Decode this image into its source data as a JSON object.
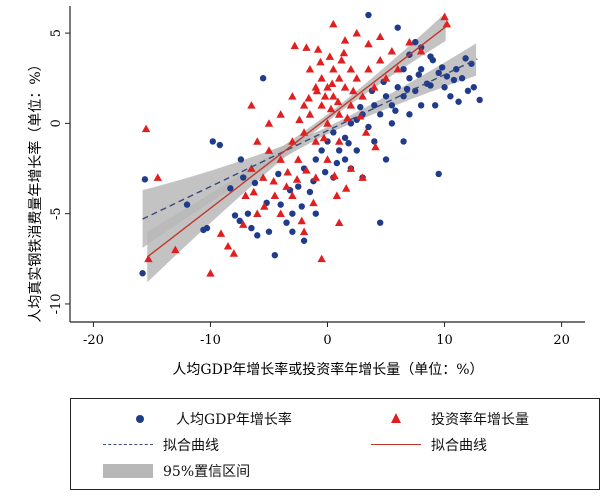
{
  "chart_data": {
    "type": "scatter",
    "xlabel": "人均GDP年增长率或投资率年增长量（单位：%）",
    "ylabel": "人均真实钢铁消费量年增长率（单位：%）",
    "xlim": [
      -22,
      22
    ],
    "ylim": [
      -11,
      6.5
    ],
    "xticks": [
      -20,
      -10,
      0,
      10,
      20
    ],
    "yticks": [
      -10,
      -5,
      0,
      5
    ],
    "grid": false,
    "legend_position": "bottom",
    "series": [
      {
        "name": "人均GDP年增长率",
        "marker": "circle",
        "color": "#1f3b8a",
        "fit_slope": 0.31,
        "fit_intercept": -0.4,
        "points": [
          [
            -15.8,
            -8.3
          ],
          [
            -15.6,
            -3.1
          ],
          [
            -12,
            -4.5
          ],
          [
            -10.3,
            -5.8
          ],
          [
            -9.8,
            -1
          ],
          [
            -7.4,
            -2
          ],
          [
            -7.2,
            -3
          ],
          [
            -7.5,
            -5.4
          ],
          [
            -6.8,
            -5
          ],
          [
            -6.5,
            -5.8
          ],
          [
            -6,
            -6.2
          ],
          [
            -5.5,
            2.5
          ],
          [
            -5,
            -6
          ],
          [
            -4.5,
            -7.3
          ],
          [
            -4,
            -4.5
          ],
          [
            -3.5,
            -5.5
          ],
          [
            -3,
            -5
          ],
          [
            -2.5,
            -3.5
          ],
          [
            -2,
            -2.5
          ],
          [
            -1.5,
            -3.8
          ],
          [
            -1,
            -2
          ],
          [
            -0.5,
            -1.5
          ],
          [
            0,
            -1
          ],
          [
            0.5,
            -0.5
          ],
          [
            1,
            -1.5
          ],
          [
            1.5,
            -0.8
          ],
          [
            2,
            0
          ],
          [
            2.5,
            0.2
          ],
          [
            3,
            0.5
          ],
          [
            3.5,
            -0.2
          ],
          [
            4,
            1
          ],
          [
            4.5,
            0.5
          ],
          [
            5,
            1.5
          ],
          [
            5.5,
            1
          ],
          [
            6,
            2
          ],
          [
            6.5,
            1.5
          ],
          [
            7,
            2.5
          ],
          [
            7.5,
            1.8
          ],
          [
            8,
            3
          ],
          [
            8.5,
            2.2
          ],
          [
            9,
            3.5
          ],
          [
            9.5,
            2.8
          ],
          [
            10,
            2
          ],
          [
            10.5,
            1.5
          ],
          [
            11,
            3
          ],
          [
            11.5,
            2.5
          ],
          [
            12,
            1.8
          ],
          [
            12.5,
            2
          ],
          [
            13,
            1.3
          ],
          [
            3.5,
            6
          ],
          [
            6,
            5.3
          ],
          [
            7.5,
            4.5
          ],
          [
            4.5,
            -5.5
          ],
          [
            9.5,
            -2.8
          ],
          [
            2,
            -2.5
          ],
          [
            3,
            -3
          ],
          [
            5,
            -2
          ],
          [
            6.5,
            -1
          ],
          [
            7,
            0.5
          ],
          [
            8,
            1
          ],
          [
            -2,
            -6.5
          ],
          [
            -3,
            -6
          ],
          [
            -1,
            -5
          ],
          [
            0.5,
            -3
          ],
          [
            1.5,
            -2
          ],
          [
            2.5,
            -1.5
          ],
          [
            4,
            -1
          ],
          [
            5.5,
            0
          ],
          [
            6.5,
            3
          ],
          [
            7,
            3.8
          ],
          [
            8,
            4.2
          ],
          [
            8.8,
            3.7
          ],
          [
            9.2,
            1
          ],
          [
            10.2,
            2.6
          ],
          [
            11.2,
            1.2
          ],
          [
            12.3,
            3.3
          ],
          [
            -6.2,
            -3.3
          ],
          [
            -5.2,
            -4.4
          ],
          [
            -4.2,
            -2.8
          ],
          [
            -3.2,
            -3.7
          ],
          [
            -2.2,
            -4.6
          ],
          [
            -1.2,
            -3.2
          ],
          [
            -0.2,
            -2.7
          ],
          [
            0.8,
            -2.2
          ],
          [
            1.8,
            -1.1
          ],
          [
            2.8,
            0.9
          ],
          [
            3.8,
            1.8
          ],
          [
            4.8,
            2.3
          ],
          [
            5.8,
            0.7
          ],
          [
            6.8,
            1.9
          ],
          [
            7.8,
            2.7
          ],
          [
            8.8,
            2.1
          ],
          [
            9.8,
            3.1
          ],
          [
            10.8,
            2.4
          ],
          [
            11.8,
            3.6
          ],
          [
            -8.3,
            -3.6
          ],
          [
            -9.2,
            -1.2
          ],
          [
            -10.6,
            -5.9
          ],
          [
            -7.9,
            -5.1
          ]
        ]
      },
      {
        "name": "投资率年增长量",
        "marker": "triangle",
        "color": "#e02020",
        "fit_slope": 0.5,
        "fit_intercept": 0.3,
        "points": [
          [
            -15.5,
            -0.3
          ],
          [
            -15.3,
            -7.5
          ],
          [
            -14.5,
            -3
          ],
          [
            -13,
            -7
          ],
          [
            -10,
            -8.3
          ],
          [
            -8.5,
            -6.8
          ],
          [
            -7,
            -4
          ],
          [
            -6.5,
            -2.5
          ],
          [
            -6,
            -5
          ],
          [
            -5.5,
            -3
          ],
          [
            -5,
            -1.5
          ],
          [
            -4.5,
            -4
          ],
          [
            -4,
            -2
          ],
          [
            -3.5,
            -3.5
          ],
          [
            -3,
            -1
          ],
          [
            -2.5,
            -2
          ],
          [
            -2,
            -0.5
          ],
          [
            -1.5,
            0.5
          ],
          [
            -1,
            -1
          ],
          [
            -0.5,
            1
          ],
          [
            0,
            0
          ],
          [
            0.5,
            1.5
          ],
          [
            1,
            0.5
          ],
          [
            1.5,
            2
          ],
          [
            2,
            1
          ],
          [
            2.5,
            2.5
          ],
          [
            3,
            1.5
          ],
          [
            3.5,
            3
          ],
          [
            4,
            2
          ],
          [
            4.5,
            3.5
          ],
          [
            5,
            2.5
          ],
          [
            5.5,
            4
          ],
          [
            6,
            3
          ],
          [
            7,
            4.5
          ],
          [
            8,
            4
          ],
          [
            10,
            5.9
          ],
          [
            10.2,
            5.5
          ],
          [
            -2.8,
            4.3
          ],
          [
            -1.8,
            4.2
          ],
          [
            -0.8,
            4.1
          ],
          [
            0.5,
            5.5
          ],
          [
            1.5,
            4.6
          ],
          [
            2.5,
            5
          ],
          [
            3.5,
            4.4
          ],
          [
            4.5,
            4.8
          ],
          [
            -1.5,
            3
          ],
          [
            -0.5,
            2.5
          ],
          [
            0.5,
            3
          ],
          [
            1.2,
            3.5
          ],
          [
            2,
            3
          ],
          [
            -1,
            2
          ],
          [
            0,
            2
          ],
          [
            1,
            2.5
          ],
          [
            -2,
            1
          ],
          [
            -3,
            1.5
          ],
          [
            -4,
            0.5
          ],
          [
            -5,
            0
          ],
          [
            -6,
            -1
          ],
          [
            -6.5,
            1
          ],
          [
            -4,
            -5
          ],
          [
            -3,
            -4
          ],
          [
            -2,
            -6
          ],
          [
            -1,
            -3
          ],
          [
            0,
            -2
          ],
          [
            1,
            -1
          ],
          [
            2,
            -2.5
          ],
          [
            3,
            -3
          ],
          [
            1,
            -5.5
          ],
          [
            -0.5,
            -7.5
          ],
          [
            -2.2,
            -5.4
          ],
          [
            0.8,
            -4
          ],
          [
            -1.8,
            -2.6
          ],
          [
            -0.3,
            -0.8
          ],
          [
            0.3,
            0.8
          ],
          [
            0.9,
            1.2
          ],
          [
            1.7,
            0.3
          ],
          [
            -0.9,
            1.8
          ],
          [
            -1.6,
            1.4
          ],
          [
            -2.4,
            0.2
          ],
          [
            2.2,
            1.8
          ],
          [
            2.8,
            0.4
          ],
          [
            0.2,
            3.7
          ],
          [
            -0.6,
            3.4
          ],
          [
            1.4,
            3.9
          ],
          [
            -3.4,
            -2.7
          ],
          [
            -4.6,
            -3.2
          ],
          [
            -5.4,
            -4.6
          ],
          [
            -6.3,
            -3.8
          ],
          [
            -7.2,
            -5.6
          ],
          [
            -8,
            -7.2
          ],
          [
            -9.1,
            -6.1
          ],
          [
            3.3,
            -0.5
          ],
          [
            4.1,
            -1.3
          ],
          [
            -2.6,
            -3.1
          ],
          [
            -1.2,
            -4.4
          ],
          [
            0.6,
            -2.9
          ],
          [
            1.6,
            -3.6
          ],
          [
            -0.2,
            1.5
          ],
          [
            0.4,
            2.2
          ]
        ]
      }
    ]
  },
  "axes": {
    "x_tick_labels": [
      "-20",
      "-10",
      "0",
      "10",
      "20"
    ],
    "y_tick_labels": [
      "-10",
      "-5",
      "0",
      "5"
    ]
  },
  "legend": {
    "item_gdp": "人均GDP年增长率",
    "item_invest": "投资率年增长量",
    "fit_dashed": "拟合曲线",
    "fit_solid": "拟合曲线",
    "ci_band": "95%置信区间",
    "colors": {
      "blue": "#1f3b8a",
      "red": "#e02020",
      "band": "#b8b8b8"
    }
  }
}
